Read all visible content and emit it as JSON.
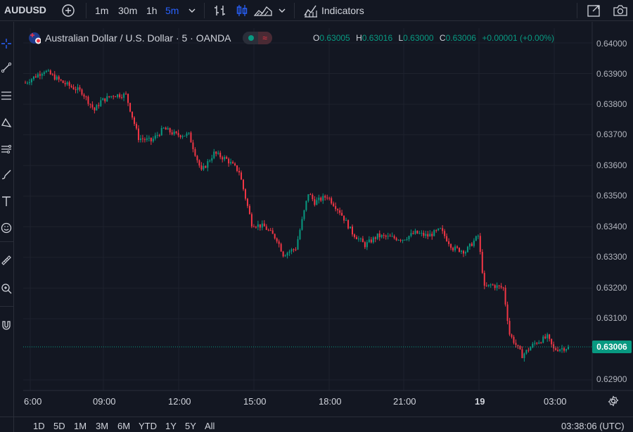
{
  "toolbar": {
    "symbol": "AUDUSD",
    "intervals": [
      "1m",
      "30m",
      "1h",
      "5m"
    ],
    "active_interval": "5m",
    "indicators_label": "Indicators"
  },
  "legend": {
    "title": "Australian Dollar / U.S. Dollar · 5 · OANDA",
    "wave_glyph": "≈",
    "ohlc": [
      {
        "key": "O",
        "value": "0.63005"
      },
      {
        "key": "H",
        "value": "0.63016"
      },
      {
        "key": "L",
        "value": "0.63000"
      },
      {
        "key": "C",
        "value": "0.63006"
      }
    ],
    "change": "+0.00001 (+0.00%)"
  },
  "price_axis": {
    "ticks": [
      "0.64000",
      "0.63900",
      "0.63800",
      "0.63700",
      "0.63600",
      "0.63500",
      "0.63400",
      "0.63300",
      "0.63200",
      "0.63100",
      "0.62900"
    ],
    "last_price": "0.63006"
  },
  "time_axis": {
    "ticks": [
      "6:00",
      "09:00",
      "12:00",
      "15:00",
      "18:00",
      "21:00",
      "19",
      "03:00"
    ]
  },
  "bottom": {
    "ranges": [
      "1D",
      "5D",
      "1M",
      "3M",
      "6M",
      "YTD",
      "1Y",
      "5Y",
      "All"
    ],
    "clock": "03:38:06 (UTC)"
  },
  "colors": {
    "background": "#131722",
    "up": "#089981",
    "down": "#f23645",
    "accent": "#2962ff",
    "grid": "#1e222d"
  },
  "chart_data": {
    "type": "candlestick",
    "symbol": "AUDUSD",
    "interval": "5",
    "source": "OANDA",
    "ylim": [
      0.6288,
      0.6401
    ],
    "x_ticks": [
      "6:00",
      "09:00",
      "12:00",
      "15:00",
      "18:00",
      "21:00",
      "19",
      "03:00"
    ],
    "y_ticks": [
      0.64,
      0.639,
      0.638,
      0.637,
      0.636,
      0.635,
      0.634,
      0.633,
      0.632,
      0.631,
      0.629
    ],
    "close_path": [
      {
        "t": "06:00",
        "close": 0.6387
      },
      {
        "t": "06:45",
        "close": 0.6391
      },
      {
        "t": "07:30",
        "close": 0.6387
      },
      {
        "t": "08:15",
        "close": 0.6384
      },
      {
        "t": "08:45",
        "close": 0.6378
      },
      {
        "t": "09:00",
        "close": 0.6381
      },
      {
        "t": "09:30",
        "close": 0.6383
      },
      {
        "t": "10:00",
        "close": 0.6383
      },
      {
        "t": "10:30",
        "close": 0.6369
      },
      {
        "t": "11:00",
        "close": 0.6368
      },
      {
        "t": "11:30",
        "close": 0.6372
      },
      {
        "t": "12:00",
        "close": 0.637
      },
      {
        "t": "12:30",
        "close": 0.637
      },
      {
        "t": "13:00",
        "close": 0.6358
      },
      {
        "t": "13:30",
        "close": 0.6364
      },
      {
        "t": "14:00",
        "close": 0.6362
      },
      {
        "t": "14:30",
        "close": 0.6358
      },
      {
        "t": "15:00",
        "close": 0.6341
      },
      {
        "t": "15:30",
        "close": 0.634
      },
      {
        "t": "16:00",
        "close": 0.6336
      },
      {
        "t": "16:15",
        "close": 0.6331
      },
      {
        "t": "16:45",
        "close": 0.6333
      },
      {
        "t": "17:15",
        "close": 0.6351
      },
      {
        "t": "17:30",
        "close": 0.6348
      },
      {
        "t": "18:00",
        "close": 0.635
      },
      {
        "t": "18:30",
        "close": 0.6345
      },
      {
        "t": "19:00",
        "close": 0.6338
      },
      {
        "t": "19:30",
        "close": 0.6334
      },
      {
        "t": "20:00",
        "close": 0.6337
      },
      {
        "t": "21:00",
        "close": 0.6336
      },
      {
        "t": "21:30",
        "close": 0.6338
      },
      {
        "t": "22:00",
        "close": 0.6337
      },
      {
        "t": "22:30",
        "close": 0.6339
      },
      {
        "t": "23:00",
        "close": 0.6333
      },
      {
        "t": "23:30",
        "close": 0.6332
      },
      {
        "t": "00:00",
        "close": 0.6337
      },
      {
        "t": "00:15",
        "close": 0.632
      },
      {
        "t": "00:30",
        "close": 0.6321
      },
      {
        "t": "01:00",
        "close": 0.632
      },
      {
        "t": "01:15",
        "close": 0.6305
      },
      {
        "t": "01:45",
        "close": 0.6298
      },
      {
        "t": "02:15",
        "close": 0.6302
      },
      {
        "t": "02:45",
        "close": 0.6304
      },
      {
        "t": "03:00",
        "close": 0.63
      },
      {
        "t": "03:35",
        "close": 0.63006
      }
    ],
    "last_price": 0.63006
  }
}
